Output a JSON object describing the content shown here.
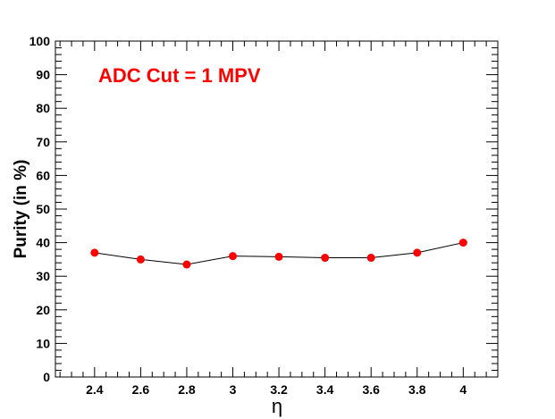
{
  "chart_data": {
    "type": "line",
    "title": "",
    "annotation": "ADC Cut = 1 MPV",
    "xlabel": "η",
    "ylabel": "Purity (in %)",
    "xlim": [
      2.23,
      4.15
    ],
    "ylim": [
      0,
      100
    ],
    "x_ticks": [
      "2.4",
      "2.6",
      "2.8",
      "3",
      "3.2",
      "3.4",
      "3.6",
      "3.8",
      "4"
    ],
    "y_ticks": [
      "0",
      "10",
      "20",
      "30",
      "40",
      "50",
      "60",
      "70",
      "80",
      "90",
      "100"
    ],
    "grid": false,
    "legend": "none",
    "series": [
      {
        "x": [
          2.4,
          2.6,
          2.8,
          3.0,
          3.2,
          3.4,
          3.6,
          3.8,
          4.0
        ],
        "y": [
          37.0,
          35.0,
          33.5,
          36.0,
          35.8,
          35.5,
          35.5,
          37.0,
          40.0
        ],
        "marker_color": "#ff0000",
        "line_color": "#000000"
      }
    ],
    "colors": {
      "annotation": "#ff0000",
      "axis": "#000000"
    }
  }
}
